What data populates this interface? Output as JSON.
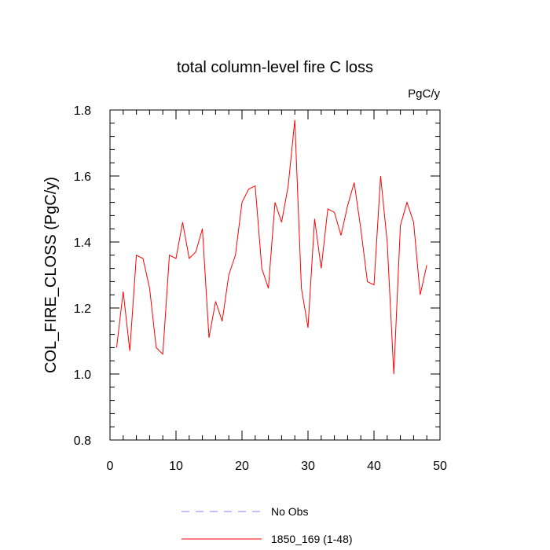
{
  "chart_data": {
    "type": "line",
    "title": "total column-level fire C loss",
    "units_label": "PgC/y",
    "ylabel": "COL_FIRE_CLOSS  (PgC/y)",
    "xlabel": "",
    "xlim": [
      0,
      50
    ],
    "ylim": [
      0.8,
      1.8
    ],
    "x_ticks": [
      0,
      10,
      20,
      30,
      40,
      50
    ],
    "x_tick_labels": [
      "0",
      "10",
      "20",
      "30",
      "40",
      "50"
    ],
    "y_ticks": [
      0.8,
      1.0,
      1.2,
      1.4,
      1.6,
      1.8
    ],
    "y_tick_labels": [
      "0.8",
      "1.0",
      "1.2",
      "1.4",
      "1.6",
      "1.8"
    ],
    "grid": false,
    "legend": {
      "placement": "bottom-center",
      "entries": [
        {
          "label": "No Obs",
          "color": "#8080ff",
          "style": "dashed"
        },
        {
          "label": "1850_169 (1-48)",
          "color": "#ff0000",
          "style": "solid"
        }
      ]
    },
    "series": [
      {
        "name": "1850_169 (1-48)",
        "color": "#ff0000",
        "x": [
          1,
          2,
          3,
          4,
          5,
          6,
          7,
          8,
          9,
          10,
          11,
          12,
          13,
          14,
          15,
          16,
          17,
          18,
          19,
          20,
          21,
          22,
          23,
          24,
          25,
          26,
          27,
          28,
          29,
          30,
          31,
          32,
          33,
          34,
          35,
          36,
          37,
          38,
          39,
          40,
          41,
          42,
          43,
          44,
          45,
          46,
          47,
          48
        ],
        "values": [
          1.08,
          1.25,
          1.07,
          1.36,
          1.35,
          1.26,
          1.08,
          1.06,
          1.36,
          1.35,
          1.46,
          1.35,
          1.37,
          1.44,
          1.11,
          1.22,
          1.16,
          1.3,
          1.36,
          1.52,
          1.56,
          1.57,
          1.32,
          1.26,
          1.52,
          1.46,
          1.57,
          1.77,
          1.26,
          1.14,
          1.47,
          1.32,
          1.5,
          1.49,
          1.42,
          1.51,
          1.58,
          1.44,
          1.28,
          1.27,
          1.6,
          1.4,
          1.0,
          1.45,
          1.52,
          1.46,
          1.24,
          1.33
        ]
      }
    ]
  }
}
